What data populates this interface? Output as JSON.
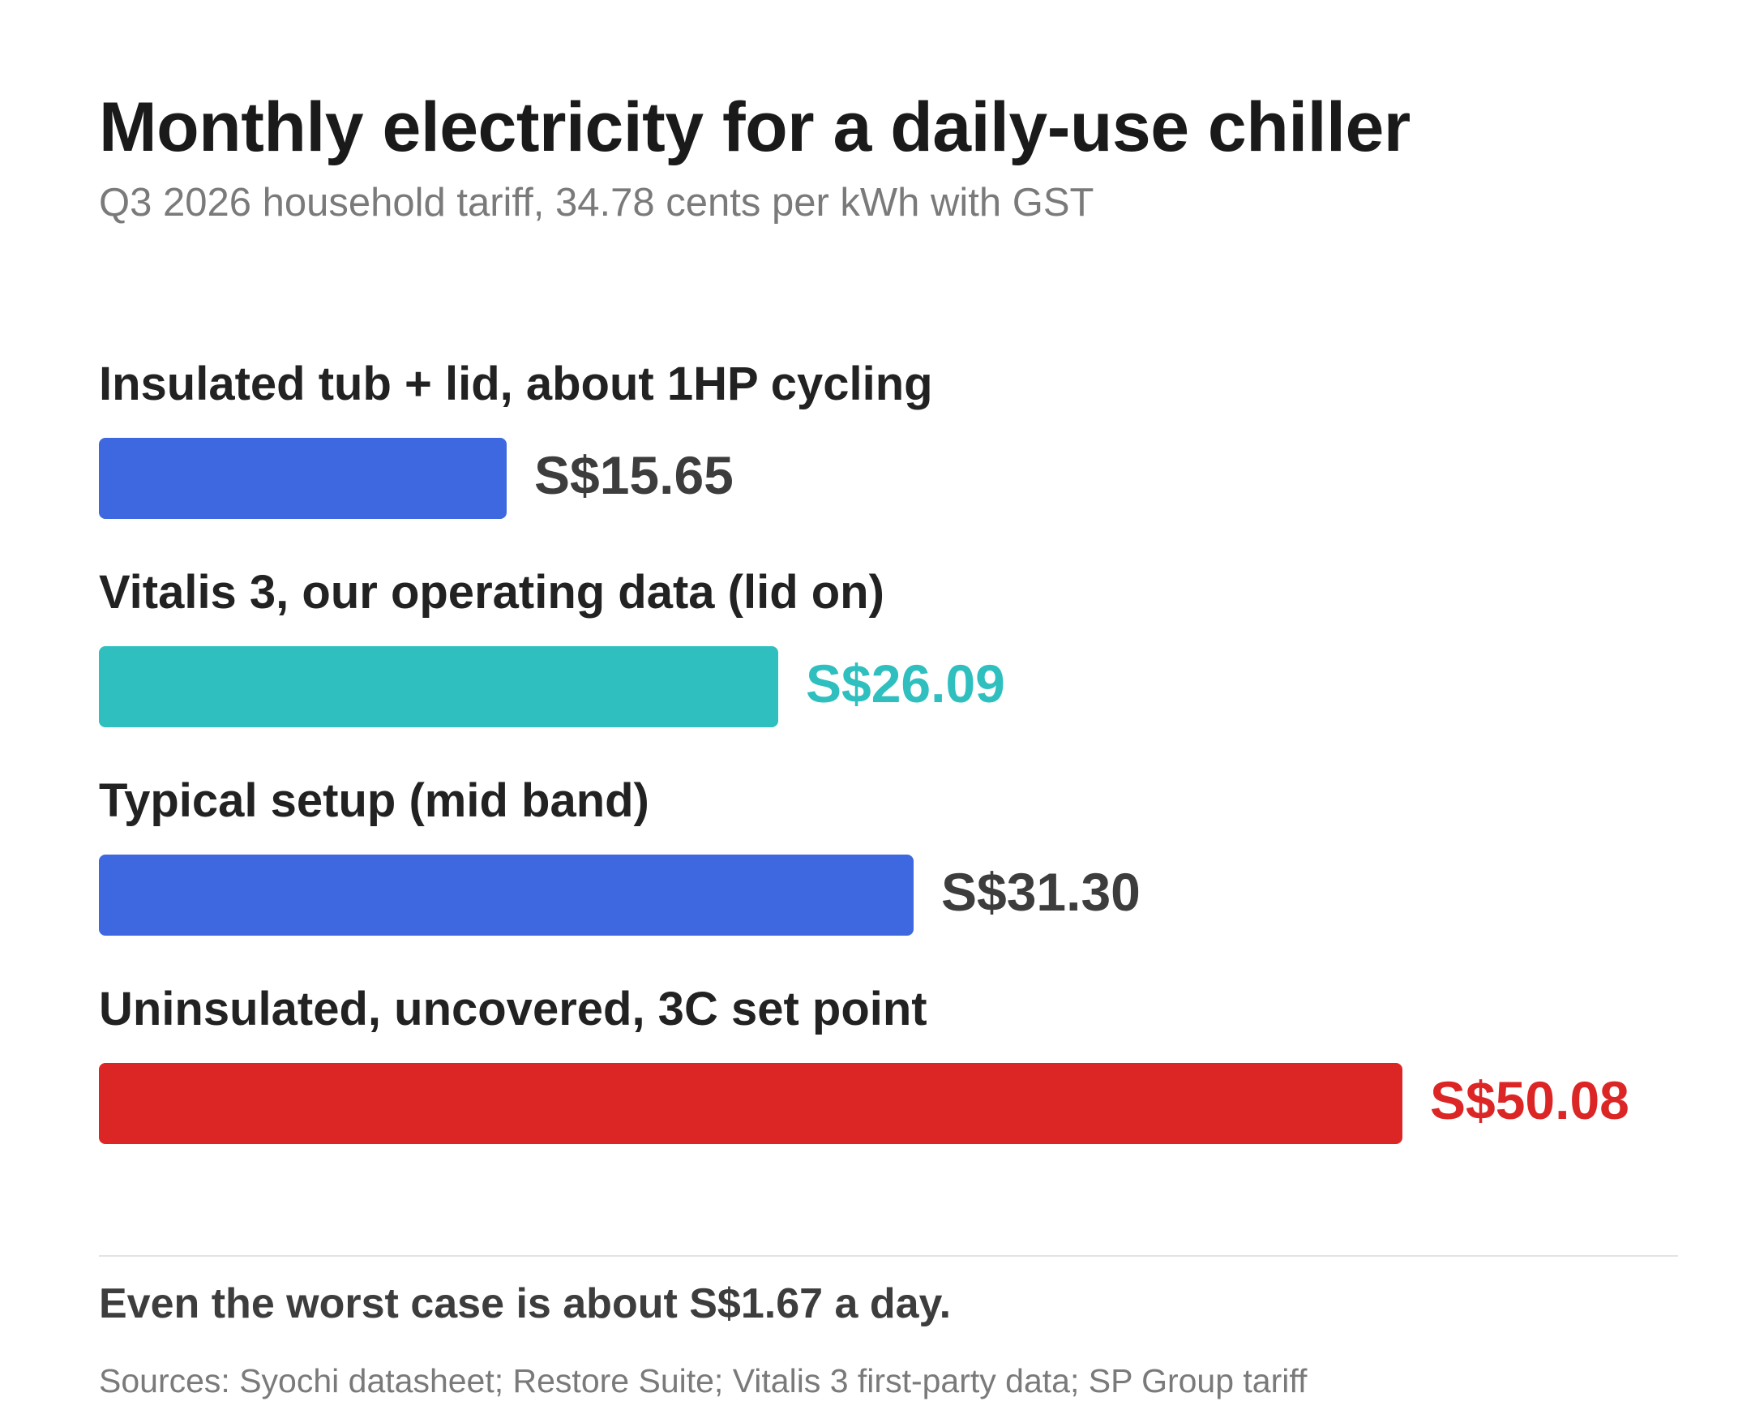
{
  "chart_data": {
    "type": "bar",
    "orientation": "horizontal",
    "title": "Monthly electricity for a daily-use chiller",
    "subtitle": "Q3 2026 household tariff, 34.78 cents per kWh with GST",
    "categories": [
      "Insulated tub + lid, about 1HP cycling",
      "Vitalis 3, our operating data (lid on)",
      "Typical setup (mid band)",
      "Uninsulated, uncovered, 3C set point"
    ],
    "values": [
      15.65,
      26.09,
      31.3,
      50.08
    ],
    "value_labels": [
      "S$15.65",
      "S$26.09",
      "S$31.30",
      "S$50.08"
    ],
    "bar_colors": [
      "#3d68e0",
      "#2fbfbf",
      "#3d68e0",
      "#dc2626"
    ],
    "label_colors": [
      "#3d3d3d",
      "#2fbfbf",
      "#3d3d3d",
      "#dc2626"
    ],
    "xlim": [
      0,
      50.08
    ],
    "grid": false,
    "legend": "none"
  },
  "footer": {
    "note": "Even the worst case is about S$1.67 a day.",
    "sources": "Sources: Syochi datasheet; Restore Suite; Vitalis 3 first-party data; SP Group tariff"
  }
}
